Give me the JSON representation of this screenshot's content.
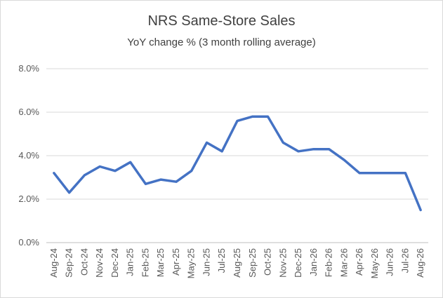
{
  "chart_data": {
    "type": "line",
    "title": "NRS Same-Store Sales",
    "subtitle": "YoY change % (3 month rolling average)",
    "xlabel": "",
    "ylabel": "",
    "categories": [
      "Aug-24",
      "Sep-24",
      "Oct-24",
      "Nov-24",
      "Dec-24",
      "Jan-25",
      "Feb-25",
      "Mar-25",
      "Apr-25",
      "May-25",
      "Jun-25",
      "Jul-25",
      "Aug-25",
      "Sep-25",
      "Oct-25",
      "Nov-25",
      "Dec-25",
      "Jan-26",
      "Feb-26",
      "Mar-26",
      "Apr-26",
      "May-26",
      "Jun-26",
      "Jul-26",
      "Aug-26"
    ],
    "series": [
      {
        "values": [
          3.2,
          2.3,
          3.1,
          3.5,
          3.3,
          3.7,
          2.7,
          2.9,
          2.8,
          3.3,
          4.6,
          4.2,
          5.6,
          5.8,
          5.8,
          4.6,
          4.2,
          4.3,
          4.3,
          3.8,
          3.2,
          3.2,
          3.2,
          3.2,
          1.5
        ],
        "color": "#4472c4"
      }
    ],
    "yticks": [
      "0.0%",
      "2.0%",
      "4.0%",
      "6.0%",
      "8.0%"
    ],
    "ylim": [
      0,
      8
    ],
    "grid": true,
    "legend": "none"
  }
}
